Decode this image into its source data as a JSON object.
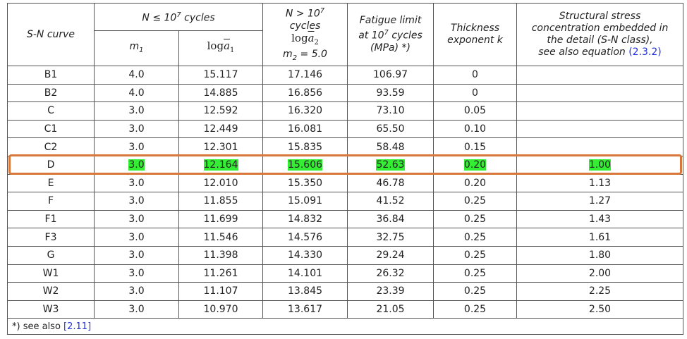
{
  "header": {
    "sn_curve": "S-N curve",
    "group1": [
      "N ≤ 10",
      "7",
      " cycles"
    ],
    "m1": [
      "m",
      "1"
    ],
    "loga1": [
      "log",
      "a",
      "1"
    ],
    "group2": {
      "line1": [
        "N > 10",
        "7"
      ],
      "line2": "cycles",
      "log": [
        "log",
        "a",
        "2"
      ],
      "m2": [
        "m",
        "2",
        " = 5.0"
      ]
    },
    "fatigue": [
      "Fatigue limit",
      "at 10",
      "7",
      " cycles",
      "(MPa) *)"
    ],
    "thickness": [
      "Thickness",
      "exponent k"
    ],
    "structural": [
      "Structural stress",
      "concentration embedded in",
      "the detail (S-N class),",
      "see also equation ",
      "(2.3.2)"
    ]
  },
  "rows": [
    [
      "B1",
      "4.0",
      "15.117",
      "17.146",
      "106.97",
      "0"
    ],
    [
      "B2",
      "4.0",
      "14.885",
      "16.856",
      "93.59",
      "0"
    ],
    [
      "C",
      "3.0",
      "12.592",
      "16.320",
      "73.10",
      "0.05"
    ],
    [
      "C1",
      "3.0",
      "12.449",
      "16.081",
      "65.50",
      "0.10"
    ],
    [
      "C2",
      "3.0",
      "12.301",
      "15.835",
      "58.48",
      "0.15"
    ],
    [
      "D",
      "3.0",
      "12.164",
      "15.606",
      "52.63",
      "0.20",
      "1.00"
    ],
    [
      "E",
      "3.0",
      "12.010",
      "15.350",
      "46.78",
      "0.20",
      "1.13"
    ],
    [
      "F",
      "3.0",
      "11.855",
      "15.091",
      "41.52",
      "0.25",
      "1.27"
    ],
    [
      "F1",
      "3.0",
      "11.699",
      "14.832",
      "36.84",
      "0.25",
      "1.43"
    ],
    [
      "F3",
      "3.0",
      "11.546",
      "14.576",
      "32.75",
      "0.25",
      "1.61"
    ],
    [
      "G",
      "3.0",
      "11.398",
      "14.330",
      "29.24",
      "0.25",
      "1.80"
    ],
    [
      "W1",
      "3.0",
      "11.261",
      "14.101",
      "26.32",
      "0.25",
      "2.00"
    ],
    [
      "W2",
      "3.0",
      "11.107",
      "13.845",
      "23.39",
      "0.25",
      "2.25"
    ],
    [
      "W3",
      "3.0",
      "10.970",
      "13.617",
      "21.05",
      "0.25",
      "2.50"
    ]
  ],
  "footnote": [
    "*) see also ",
    "[2.11]"
  ]
}
